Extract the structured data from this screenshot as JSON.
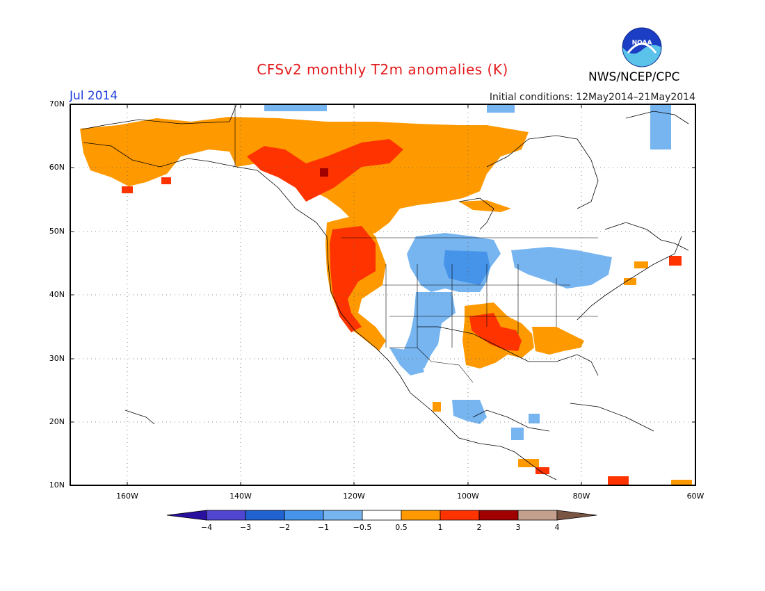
{
  "title": "CFSv2 monthly T2m anomalies (K)",
  "month": "Jul 2014",
  "initial_conditions": "Initial conditions: 12May2014–21May2014",
  "agency": "NWS/NCEP/CPC",
  "logo_text": "NOAA",
  "map": {
    "lat_labels": [
      "70N",
      "60N",
      "50N",
      "40N",
      "30N",
      "20N",
      "10N"
    ],
    "lon_labels": [
      "160W",
      "140W",
      "120W",
      "100W",
      "80W",
      "60W"
    ],
    "colors": {
      "water": "#ffffff",
      "land_outline": "#000000",
      "neutral": "#ffffff",
      "warm_05_1": "#ff9900",
      "warm_1_2": "#ff3300",
      "warm_2_3": "#a00000",
      "cool_05_1": "#77b5f0",
      "cool_1_2": "#4693ea",
      "title_red": "#e31a1c",
      "label_blue": "#1a3ddb"
    }
  },
  "colorbar": {
    "labels": [
      "−4",
      "−3",
      "−2",
      "−1",
      "−0.5",
      "0.5",
      "1",
      "2",
      "3",
      "4"
    ],
    "colors": [
      "#2a109e",
      "#5046d2",
      "#1f62d0",
      "#4693ea",
      "#77b5f0",
      "#ffffff",
      "#ff9900",
      "#ff3300",
      "#a00000",
      "#c4a08e",
      "#7b5544"
    ]
  }
}
